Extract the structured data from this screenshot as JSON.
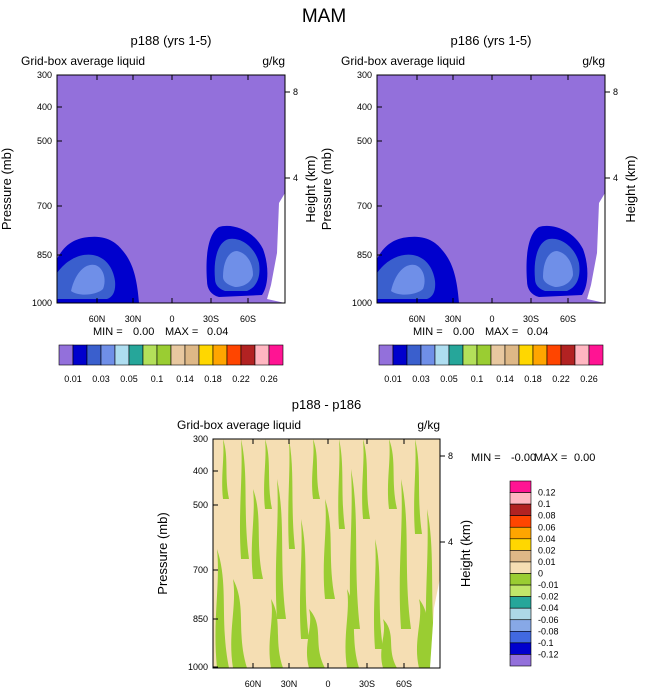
{
  "figure_title": "MAM",
  "colors": {
    "background_fill": "#9370DB",
    "diff_background": "#F5DEB3",
    "diff_feature": "#9ACD32",
    "palette_main": [
      "#9370DB",
      "#0000CD",
      "#3A5FCD",
      "#6F8FE8",
      "#AEDDF0",
      "#26A69A",
      "#B4E05A",
      "#9ACD32",
      "#E8C8A0",
      "#DEB887",
      "#FFD700",
      "#FFA500",
      "#FF4500",
      "#B22222",
      "#FFB6C1",
      "#FF1493"
    ],
    "palette_diff": [
      "#FF1493",
      "#FFB6C1",
      "#B22222",
      "#FF4500",
      "#FFA500",
      "#FFD700",
      "#DEB887",
      "#F5DEB3",
      "#9ACD32",
      "#C2E66A",
      "#26A69A",
      "#ADD8E6",
      "#87A8E6",
      "#4169E1",
      "#0000CD",
      "#9370DB"
    ]
  },
  "chart_data": [
    {
      "type": "contour",
      "title": "p188 (yrs 1-5)",
      "left_label": "Grid-box average liquid",
      "right_label": "g/kg",
      "ylabel": "Pressure (mb)",
      "ylabel_right": "Height (km)",
      "y_ticks": [
        "300",
        "400",
        "500",
        "700",
        "850",
        "1000"
      ],
      "y_right_ticks": [
        "8",
        "4"
      ],
      "x_ticks": [
        "60N",
        "30N",
        "0",
        "30S",
        "60S"
      ],
      "min_label": "MIN =",
      "min_value": "0.00",
      "max_label": "MAX =",
      "max_value": "0.04",
      "colorbar_labels": [
        "0.01",
        "0.03",
        "0.05",
        "0.1",
        "0.14",
        "0.18",
        "0.22",
        "0.26"
      ]
    },
    {
      "type": "contour",
      "title": "p186 (yrs 1-5)",
      "left_label": "Grid-box average liquid",
      "right_label": "g/kg",
      "ylabel": "Pressure (mb)",
      "ylabel_right": "Height (km)",
      "y_ticks": [
        "300",
        "400",
        "500",
        "700",
        "850",
        "1000"
      ],
      "y_right_ticks": [
        "8",
        "4"
      ],
      "x_ticks": [
        "60N",
        "30N",
        "0",
        "30S",
        "60S"
      ],
      "min_label": "MIN =",
      "min_value": "0.00",
      "max_label": "MAX =",
      "max_value": "0.04",
      "colorbar_labels": [
        "0.01",
        "0.03",
        "0.05",
        "0.1",
        "0.14",
        "0.18",
        "0.22",
        "0.26"
      ]
    },
    {
      "type": "contour",
      "title": "p188 - p186",
      "left_label": "Grid-box average liquid",
      "right_label": "g/kg",
      "ylabel": "Pressure (mb)",
      "ylabel_right": "Height (km)",
      "y_ticks": [
        "300",
        "400",
        "500",
        "700",
        "850",
        "1000"
      ],
      "y_right_ticks": [
        "8",
        "4"
      ],
      "x_ticks": [
        "60N",
        "30N",
        "0",
        "30S",
        "60S"
      ],
      "min_label": "MIN =",
      "min_value": "-0.00",
      "max_label": "MAX =",
      "max_value": "0.00",
      "colorbar_labels": [
        "0.12",
        "0.1",
        "0.08",
        "0.06",
        "0.04",
        "0.02",
        "0.01",
        "0",
        "-0.01",
        "-0.02",
        "-0.04",
        "-0.06",
        "-0.08",
        "-0.1",
        "-0.12"
      ]
    }
  ]
}
